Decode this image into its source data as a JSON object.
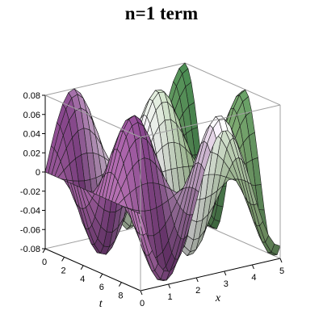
{
  "chart_data": {
    "type": "surface",
    "title": "n=1 term",
    "xlabel": "x",
    "ylabel": "t",
    "zlabel": "",
    "function": "0.08*sin(pi*x/2)*cos(t)",
    "x_range": [
      0,
      5
    ],
    "t_range": [
      0,
      10
    ],
    "z_range": [
      -0.08,
      0.08
    ],
    "x_ticks": [
      "0",
      "1",
      "2",
      "3",
      "4",
      "5"
    ],
    "t_ticks": [
      "0",
      "2",
      "4",
      "6",
      "8"
    ],
    "z_ticks": [
      "0.08",
      "0.06",
      "0.04",
      "0.02",
      "0",
      "-0.02",
      "-0.04",
      "-0.06",
      "-0.08"
    ],
    "grid": "mesh",
    "box": true,
    "colors": {
      "pink": "#d78ad2",
      "purple": "#7d3f82",
      "white": "#f2f0f4",
      "sage": "#8bb07a",
      "green": "#3f7e48",
      "mesh": "#1a1a1a",
      "box": "#a0a0a0"
    }
  }
}
